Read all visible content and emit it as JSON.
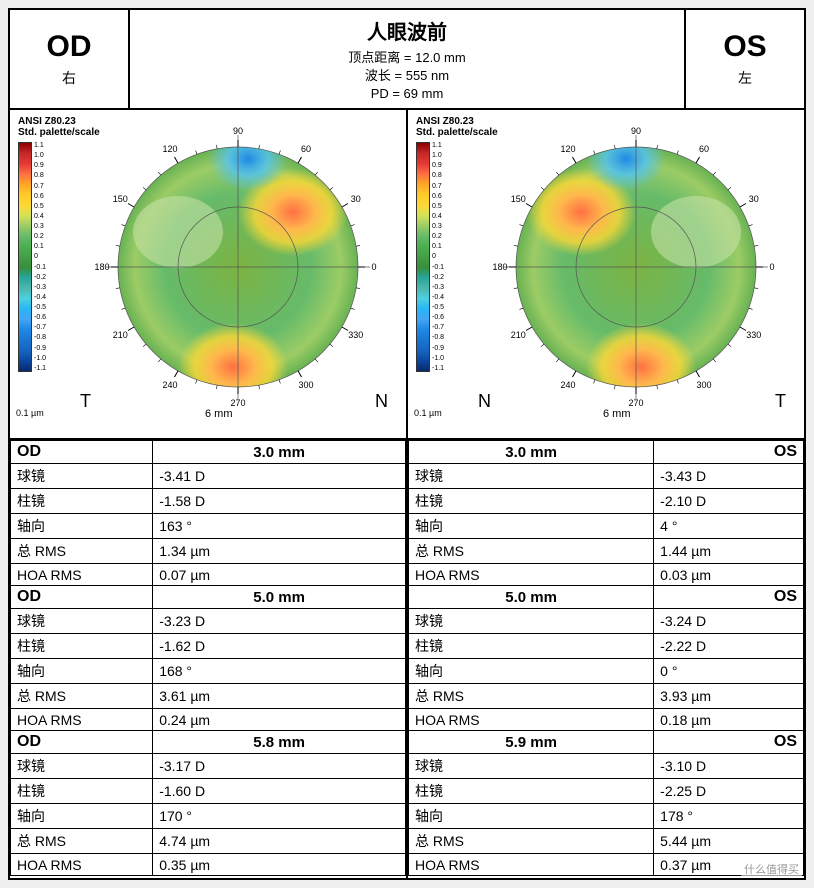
{
  "header": {
    "od": "OD",
    "od_label": "右",
    "os": "OS",
    "os_label": "左",
    "title": "人眼波前",
    "vertex": "顶点距离 = 12.0 mm",
    "wavelength": "波长 = 555 nm",
    "pd": "PD = 69 mm"
  },
  "scale": {
    "standard": "ANSI Z80.23",
    "label": "Std. palette/scale",
    "unit": "0.1 µm",
    "ticks": [
      "1.1",
      "1.0",
      "0.9",
      "0.8",
      "0.7",
      "0.6",
      "0.5",
      "0.4",
      "0.3",
      "0.2",
      "0.1",
      "0",
      "-0.1",
      "-0.2",
      "-0.3",
      "-0.4",
      "-0.5",
      "-0.6",
      "-0.7",
      "-0.8",
      "-0.9",
      "-1.0",
      "-1.1"
    ],
    "colors": [
      "#8b0000",
      "#c62828",
      "#e53935",
      "#ff7043",
      "#ffa726",
      "#ffca28",
      "#fdd835",
      "#d4e157",
      "#9ccc65",
      "#66bb6a",
      "#4caf50",
      "#43a047",
      "#388e3c",
      "#26a69a",
      "#4db6ac",
      "#4dd0e1",
      "#29b6f6",
      "#42a5f5",
      "#1e88e5",
      "#1976d2",
      "#1565c0",
      "#0d47a1",
      "#082a6b"
    ]
  },
  "maps": {
    "angles": [
      "0",
      "30",
      "60",
      "90",
      "120",
      "150",
      "180",
      "210",
      "240",
      "270",
      "300",
      "330"
    ],
    "diameter": "6 mm",
    "od": {
      "left_tn": "T",
      "right_tn": "N"
    },
    "os": {
      "left_tn": "N",
      "right_tn": "T"
    }
  },
  "tables": {
    "labels": {
      "sphere": "球镜",
      "cyl": "柱镜",
      "axis": "轴向",
      "rms": "总 RMS",
      "hoa": "HOA RMS"
    },
    "od": [
      {
        "eye": "OD",
        "size": "3.0 mm",
        "rows": [
          [
            "球镜",
            "-3.41 D"
          ],
          [
            "柱镜",
            "-1.58 D"
          ],
          [
            "轴向",
            "163 °"
          ],
          [
            "总 RMS",
            "1.34 µm"
          ],
          [
            "HOA RMS",
            "0.07 µm"
          ]
        ]
      },
      {
        "eye": "OD",
        "size": "5.0 mm",
        "rows": [
          [
            "球镜",
            "-3.23 D"
          ],
          [
            "柱镜",
            "-1.62 D"
          ],
          [
            "轴向",
            "168 °"
          ],
          [
            "总 RMS",
            "3.61 µm"
          ],
          [
            "HOA RMS",
            "0.24 µm"
          ]
        ]
      },
      {
        "eye": "OD",
        "size": "5.8 mm",
        "rows": [
          [
            "球镜",
            "-3.17 D"
          ],
          [
            "柱镜",
            "-1.60 D"
          ],
          [
            "轴向",
            "170 °"
          ],
          [
            "总 RMS",
            "4.74 µm"
          ],
          [
            "HOA RMS",
            "0.35 µm"
          ]
        ]
      }
    ],
    "os": [
      {
        "eye": "OS",
        "size": "3.0 mm",
        "rows": [
          [
            "球镜",
            "-3.43 D"
          ],
          [
            "柱镜",
            "-2.10 D"
          ],
          [
            "轴向",
            "4 °"
          ],
          [
            "总 RMS",
            "1.44 µm"
          ],
          [
            "HOA RMS",
            "0.03 µm"
          ]
        ]
      },
      {
        "eye": "OS",
        "size": "5.0 mm",
        "rows": [
          [
            "球镜",
            "-3.24 D"
          ],
          [
            "柱镜",
            "-2.22 D"
          ],
          [
            "轴向",
            "0 °"
          ],
          [
            "总 RMS",
            "3.93 µm"
          ],
          [
            "HOA RMS",
            "0.18 µm"
          ]
        ]
      },
      {
        "eye": "OS",
        "size": "5.9 mm",
        "rows": [
          [
            "球镜",
            "-3.10 D"
          ],
          [
            "柱镜",
            "-2.25 D"
          ],
          [
            "轴向",
            "178 °"
          ],
          [
            "总 RMS",
            "5.44 µm"
          ],
          [
            "HOA RMS",
            "0.37 µm"
          ]
        ]
      }
    ]
  },
  "watermark": "什么值得买"
}
